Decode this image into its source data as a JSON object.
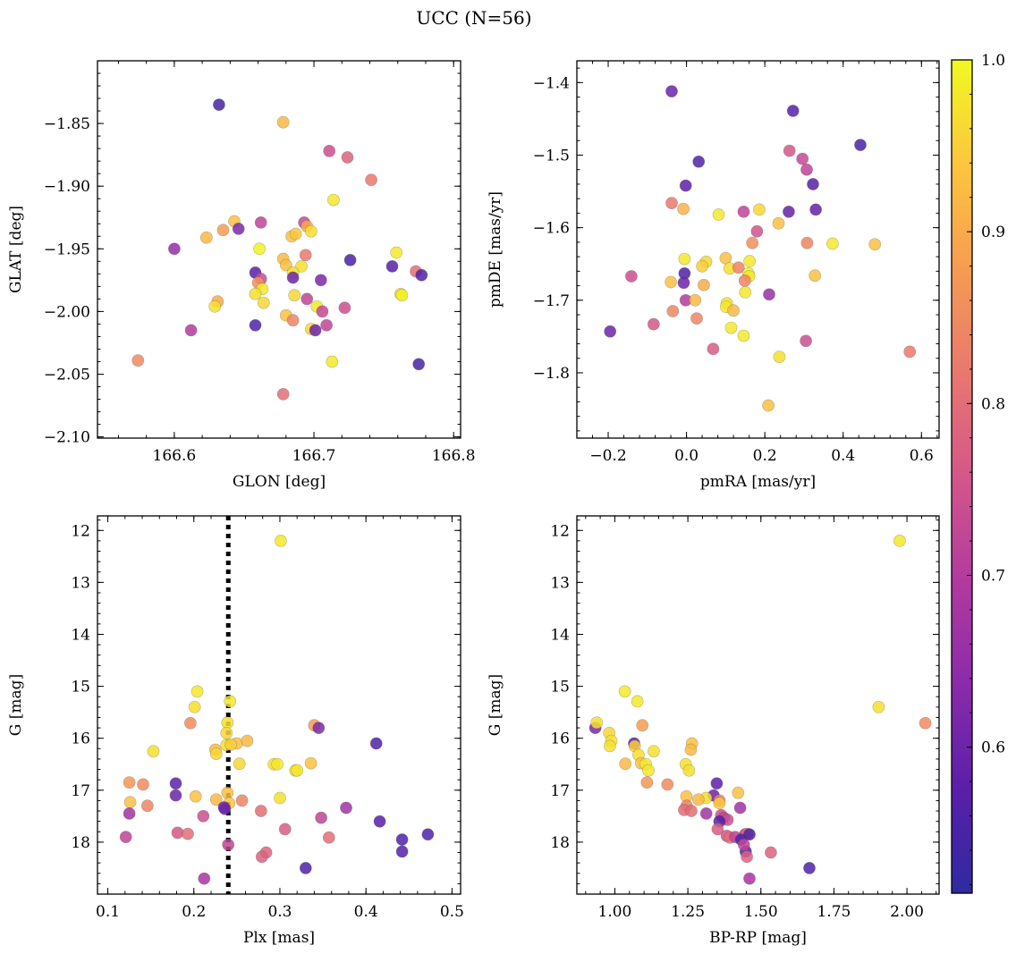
{
  "figure": {
    "title": "UCC (N=56)"
  },
  "chart_data": [
    {
      "type": "scatter",
      "xlabel": "GLON [deg]",
      "ylabel": "GLAT [deg]",
      "xlim": [
        166.545,
        166.805
      ],
      "ylim": [
        -2.101,
        -1.8
      ],
      "xticks": [
        166.6,
        166.7,
        166.8
      ],
      "xtick_labels": [
        "166.6",
        "166.7",
        "166.8"
      ],
      "yticks": [
        -1.85,
        -1.9,
        -1.95,
        -2.0,
        -2.05,
        -2.1
      ],
      "ytick_labels": [
        "−1.85",
        "−1.90",
        "−1.95",
        "−2.00",
        "−2.05",
        "−2.10"
      ],
      "points": [
        [
          166.632,
          -1.835,
          0.55
        ],
        [
          166.678,
          -1.849,
          0.92
        ],
        [
          166.711,
          -1.872,
          0.74
        ],
        [
          166.724,
          -1.877,
          0.78
        ],
        [
          166.741,
          -1.895,
          0.82
        ],
        [
          166.714,
          -1.911,
          0.98
        ],
        [
          166.643,
          -1.928,
          0.93
        ],
        [
          166.646,
          -1.934,
          0.62
        ],
        [
          166.662,
          -1.929,
          0.72
        ],
        [
          166.693,
          -1.929,
          0.73
        ],
        [
          166.695,
          -1.932,
          0.9
        ],
        [
          166.6,
          -1.95,
          0.65
        ],
        [
          166.623,
          -1.941,
          0.92
        ],
        [
          166.684,
          -1.94,
          0.93
        ],
        [
          166.687,
          -1.938,
          0.94
        ],
        [
          166.698,
          -1.936,
          0.97
        ],
        [
          166.661,
          -1.95,
          0.99
        ],
        [
          166.759,
          -1.953,
          0.98
        ],
        [
          166.726,
          -1.959,
          0.55
        ],
        [
          166.678,
          -1.958,
          0.92
        ],
        [
          166.68,
          -1.963,
          0.93
        ],
        [
          166.694,
          -1.955,
          0.82
        ],
        [
          166.691,
          -1.964,
          0.97
        ],
        [
          166.685,
          -1.969,
          0.97
        ],
        [
          166.685,
          -1.973,
          0.6
        ],
        [
          166.658,
          -1.969,
          0.57
        ],
        [
          166.662,
          -1.974,
          0.74
        ],
        [
          166.66,
          -1.977,
          0.86
        ],
        [
          166.663,
          -1.982,
          0.98
        ],
        [
          166.658,
          -1.986,
          0.97
        ],
        [
          166.705,
          -1.975,
          0.62
        ],
        [
          166.756,
          -1.964,
          0.57
        ],
        [
          166.773,
          -1.968,
          0.8
        ],
        [
          166.777,
          -1.971,
          0.56
        ],
        [
          166.762,
          -1.986,
          0.97
        ],
        [
          166.763,
          -1.987,
          0.99
        ],
        [
          166.631,
          -1.992,
          0.9
        ],
        [
          166.629,
          -1.996,
          0.97
        ],
        [
          166.664,
          -1.993,
          0.96
        ],
        [
          166.686,
          -1.987,
          0.96
        ],
        [
          166.695,
          -1.99,
          0.72
        ],
        [
          166.702,
          -1.996,
          0.98
        ],
        [
          166.722,
          -1.997,
          0.74
        ],
        [
          166.706,
          -2.0,
          0.73
        ],
        [
          166.68,
          -2.003,
          0.93
        ],
        [
          166.685,
          -2.007,
          0.84
        ],
        [
          166.658,
          -2.011,
          0.56
        ],
        [
          166.709,
          -2.011,
          0.72
        ],
        [
          166.698,
          -2.014,
          0.96
        ],
        [
          166.701,
          -2.015,
          0.6
        ],
        [
          166.612,
          -2.015,
          0.7
        ],
        [
          166.574,
          -2.039,
          0.85
        ],
        [
          166.713,
          -2.04,
          0.98
        ],
        [
          166.775,
          -2.042,
          0.55
        ],
        [
          166.678,
          -2.066,
          0.8
        ],
        [
          166.635,
          -1.935,
          0.88
        ]
      ]
    },
    {
      "type": "scatter",
      "xlabel": "pmRA [mas/yr]",
      "ylabel": "pmDE [mas/yr]",
      "xlim": [
        -0.28,
        0.645
      ],
      "ylim": [
        -1.89,
        -1.37
      ],
      "xticks": [
        -0.2,
        0.0,
        0.2,
        0.4,
        0.6
      ],
      "xtick_labels": [
        "−0.2",
        "0.0",
        "0.2",
        "0.4",
        "0.6"
      ],
      "yticks": [
        -1.4,
        -1.5,
        -1.6,
        -1.7,
        -1.8
      ],
      "ytick_labels": [
        "−1.4",
        "−1.5",
        "−1.6",
        "−1.7",
        "−1.8"
      ],
      "points": [
        [
          -0.038,
          -1.412,
          0.6
        ],
        [
          0.272,
          -1.439,
          0.57
        ],
        [
          0.444,
          -1.486,
          0.55
        ],
        [
          0.263,
          -1.494,
          0.76
        ],
        [
          0.296,
          -1.505,
          0.73
        ],
        [
          0.307,
          -1.52,
          0.72
        ],
        [
          0.031,
          -1.509,
          0.56
        ],
        [
          -0.002,
          -1.542,
          0.58
        ],
        [
          0.323,
          -1.54,
          0.57
        ],
        [
          -0.038,
          -1.566,
          0.82
        ],
        [
          -0.008,
          -1.574,
          0.91
        ],
        [
          0.082,
          -1.582,
          0.98
        ],
        [
          0.146,
          -1.578,
          0.72
        ],
        [
          0.186,
          -1.575,
          0.96
        ],
        [
          0.261,
          -1.578,
          0.59
        ],
        [
          0.33,
          -1.575,
          0.59
        ],
        [
          0.235,
          -1.594,
          0.93
        ],
        [
          0.18,
          -1.605,
          0.75
        ],
        [
          0.168,
          -1.621,
          0.86
        ],
        [
          0.308,
          -1.621,
          0.84
        ],
        [
          0.373,
          -1.622,
          0.98
        ],
        [
          0.481,
          -1.623,
          0.93
        ],
        [
          -0.005,
          -1.643,
          0.98
        ],
        [
          0.05,
          -1.647,
          0.96
        ],
        [
          0.1,
          -1.642,
          0.93
        ],
        [
          0.161,
          -1.646,
          0.98
        ],
        [
          0.04,
          -1.653,
          0.95
        ],
        [
          0.11,
          -1.656,
          0.97
        ],
        [
          0.133,
          -1.655,
          0.84
        ],
        [
          0.158,
          -1.663,
          0.99
        ],
        [
          0.16,
          -1.667,
          0.98
        ],
        [
          -0.005,
          -1.663,
          0.56
        ],
        [
          -0.141,
          -1.667,
          0.74
        ],
        [
          -0.007,
          -1.676,
          0.6
        ],
        [
          -0.04,
          -1.675,
          0.93
        ],
        [
          0.044,
          -1.679,
          0.9
        ],
        [
          0.149,
          -1.673,
          0.84
        ],
        [
          0.328,
          -1.666,
          0.93
        ],
        [
          0.15,
          -1.689,
          0.98
        ],
        [
          -0.002,
          -1.7,
          0.7
        ],
        [
          0.022,
          -1.7,
          0.92
        ],
        [
          0.103,
          -1.704,
          0.97
        ],
        [
          0.101,
          -1.709,
          0.98
        ],
        [
          0.12,
          -1.714,
          0.92
        ],
        [
          0.211,
          -1.692,
          0.66
        ],
        [
          -0.195,
          -1.743,
          0.6
        ],
        [
          -0.084,
          -1.733,
          0.76
        ],
        [
          -0.035,
          -1.715,
          0.84
        ],
        [
          0.026,
          -1.725,
          0.84
        ],
        [
          0.114,
          -1.738,
          0.98
        ],
        [
          0.146,
          -1.749,
          0.98
        ],
        [
          0.305,
          -1.756,
          0.74
        ],
        [
          0.068,
          -1.767,
          0.77
        ],
        [
          0.237,
          -1.778,
          0.97
        ],
        [
          0.57,
          -1.771,
          0.82
        ],
        [
          0.209,
          -1.845,
          0.93
        ]
      ]
    },
    {
      "type": "scatter",
      "xlabel": "Plx [mas]",
      "ylabel": "G [mag]",
      "xlim": [
        0.088,
        0.51
      ],
      "ylim": [
        19.0,
        11.72
      ],
      "xticks": [
        0.1,
        0.2,
        0.3,
        0.4,
        0.5
      ],
      "xtick_labels": [
        "0.1",
        "0.2",
        "0.3",
        "0.4",
        "0.5"
      ],
      "yticks": [
        12,
        13,
        14,
        15,
        16,
        17,
        18
      ],
      "ytick_labels": [
        "12",
        "13",
        "14",
        "15",
        "16",
        "17",
        "18"
      ],
      "vline": 0.24,
      "points": [
        [
          0.301,
          12.2,
          0.98
        ],
        [
          0.204,
          15.1,
          0.98
        ],
        [
          0.242,
          15.29,
          0.98
        ],
        [
          0.201,
          15.4,
          0.97
        ],
        [
          0.196,
          15.71,
          0.85
        ],
        [
          0.239,
          15.7,
          0.97
        ],
        [
          0.34,
          15.75,
          0.88
        ],
        [
          0.345,
          15.8,
          0.62
        ],
        [
          0.238,
          15.9,
          0.96
        ],
        [
          0.153,
          16.25,
          0.97
        ],
        [
          0.225,
          16.22,
          0.92
        ],
        [
          0.226,
          16.3,
          0.96
        ],
        [
          0.238,
          16.13,
          0.97
        ],
        [
          0.25,
          16.1,
          0.93
        ],
        [
          0.262,
          16.05,
          0.92
        ],
        [
          0.412,
          16.1,
          0.56
        ],
        [
          0.253,
          16.49,
          0.96
        ],
        [
          0.293,
          16.5,
          0.97
        ],
        [
          0.336,
          16.48,
          0.93
        ],
        [
          0.318,
          16.62,
          0.97
        ],
        [
          0.32,
          16.62,
          0.98
        ],
        [
          0.125,
          16.85,
          0.87
        ],
        [
          0.141,
          16.89,
          0.85
        ],
        [
          0.179,
          16.87,
          0.58
        ],
        [
          0.179,
          17.1,
          0.6
        ],
        [
          0.126,
          17.23,
          0.93
        ],
        [
          0.146,
          17.3,
          0.84
        ],
        [
          0.202,
          17.12,
          0.93
        ],
        [
          0.226,
          17.18,
          0.92
        ],
        [
          0.239,
          17.05,
          0.93
        ],
        [
          0.241,
          17.25,
          0.94
        ],
        [
          0.256,
          17.2,
          0.84
        ],
        [
          0.3,
          17.15,
          0.97
        ],
        [
          0.125,
          17.45,
          0.67
        ],
        [
          0.211,
          17.5,
          0.74
        ],
        [
          0.235,
          17.33,
          0.6
        ],
        [
          0.278,
          17.4,
          0.8
        ],
        [
          0.348,
          17.53,
          0.72
        ],
        [
          0.377,
          17.34,
          0.67
        ],
        [
          0.416,
          17.6,
          0.57
        ],
        [
          0.472,
          17.85,
          0.56
        ],
        [
          0.121,
          17.9,
          0.72
        ],
        [
          0.181,
          17.82,
          0.76
        ],
        [
          0.193,
          17.84,
          0.8
        ],
        [
          0.306,
          17.75,
          0.77
        ],
        [
          0.357,
          17.91,
          0.8
        ],
        [
          0.442,
          17.95,
          0.56
        ],
        [
          0.24,
          18.05,
          0.72
        ],
        [
          0.284,
          18.2,
          0.78
        ],
        [
          0.279,
          18.28,
          0.78
        ],
        [
          0.442,
          18.18,
          0.57
        ],
        [
          0.33,
          18.5,
          0.56
        ],
        [
          0.212,
          18.7,
          0.68
        ],
        [
          0.236,
          17.36,
          0.6
        ],
        [
          0.243,
          16.12,
          0.95
        ],
        [
          0.297,
          16.5,
          0.98
        ]
      ]
    },
    {
      "type": "scatter",
      "xlabel": "BP-RP [mag]",
      "ylabel": "G [mag]",
      "xlim": [
        0.87,
        2.11
      ],
      "ylim": [
        19.0,
        11.72
      ],
      "xticks": [
        1.0,
        1.25,
        1.5,
        1.75,
        2.0
      ],
      "xtick_labels": [
        "1.00",
        "1.25",
        "1.50",
        "1.75",
        "2.00"
      ],
      "yticks": [
        12,
        13,
        14,
        15,
        16,
        17,
        18
      ],
      "ytick_labels": [
        "12",
        "13",
        "14",
        "15",
        "16",
        "17",
        "18"
      ],
      "points": [
        [
          1.975,
          12.2,
          0.98
        ],
        [
          1.903,
          15.4,
          0.97
        ],
        [
          2.063,
          15.71,
          0.85
        ],
        [
          1.034,
          15.1,
          0.98
        ],
        [
          1.077,
          15.29,
          0.98
        ],
        [
          0.933,
          15.8,
          0.62
        ],
        [
          0.938,
          15.7,
          0.97
        ],
        [
          1.094,
          15.75,
          0.88
        ],
        [
          0.981,
          15.9,
          0.96
        ],
        [
          0.988,
          16.05,
          0.97
        ],
        [
          0.983,
          16.15,
          0.97
        ],
        [
          1.066,
          16.1,
          0.58
        ],
        [
          1.068,
          16.15,
          0.95
        ],
        [
          1.081,
          16.32,
          0.97
        ],
        [
          1.133,
          16.25,
          0.97
        ],
        [
          1.264,
          16.1,
          0.93
        ],
        [
          1.26,
          16.22,
          0.92
        ],
        [
          1.243,
          16.5,
          0.97
        ],
        [
          1.254,
          16.62,
          0.97
        ],
        [
          1.036,
          16.49,
          0.92
        ],
        [
          1.09,
          16.48,
          0.93
        ],
        [
          1.106,
          16.5,
          0.98
        ],
        [
          1.115,
          16.62,
          0.98
        ],
        [
          1.11,
          16.85,
          0.87
        ],
        [
          1.18,
          16.89,
          0.85
        ],
        [
          1.349,
          16.87,
          0.58
        ],
        [
          1.338,
          17.1,
          0.6
        ],
        [
          1.245,
          17.12,
          0.93
        ],
        [
          1.312,
          17.15,
          0.97
        ],
        [
          1.422,
          17.05,
          0.93
        ],
        [
          1.286,
          17.18,
          0.92
        ],
        [
          1.358,
          17.2,
          0.84
        ],
        [
          1.358,
          17.25,
          0.94
        ],
        [
          1.246,
          17.3,
          0.84
        ],
        [
          1.237,
          17.38,
          0.8
        ],
        [
          1.313,
          17.45,
          0.67
        ],
        [
          1.364,
          17.48,
          0.74
        ],
        [
          1.373,
          17.53,
          0.72
        ],
        [
          1.386,
          17.57,
          0.74
        ],
        [
          1.429,
          17.34,
          0.67
        ],
        [
          1.358,
          17.6,
          0.57
        ],
        [
          1.352,
          17.75,
          0.77
        ],
        [
          1.383,
          17.88,
          0.76
        ],
        [
          1.394,
          17.91,
          0.8
        ],
        [
          1.412,
          17.9,
          0.72
        ],
        [
          1.446,
          17.85,
          0.72
        ],
        [
          1.453,
          17.84,
          0.8
        ],
        [
          1.461,
          17.85,
          0.56
        ],
        [
          1.432,
          17.95,
          0.56
        ],
        [
          1.448,
          18.18,
          0.57
        ],
        [
          1.452,
          18.28,
          0.78
        ],
        [
          1.534,
          18.2,
          0.78
        ],
        [
          1.461,
          18.7,
          0.68
        ],
        [
          1.666,
          18.5,
          0.56
        ],
        [
          1.442,
          18.05,
          0.72
        ],
        [
          1.262,
          17.4,
          0.8
        ]
      ]
    }
  ],
  "colorbar": {
    "colormap": "plasma",
    "range": [
      0.515,
      1.0
    ],
    "ticks": [
      0.6,
      0.7,
      0.8,
      0.9,
      1.0
    ],
    "tick_labels": [
      "0.6",
      "0.7",
      "0.8",
      "0.9",
      "1.0"
    ],
    "stops": [
      "#2f2aa0",
      "#5a1fa8",
      "#8a2bab",
      "#b23a9e",
      "#d3578a",
      "#e9786f",
      "#f69c52",
      "#fcc63e",
      "#f0f921"
    ]
  }
}
